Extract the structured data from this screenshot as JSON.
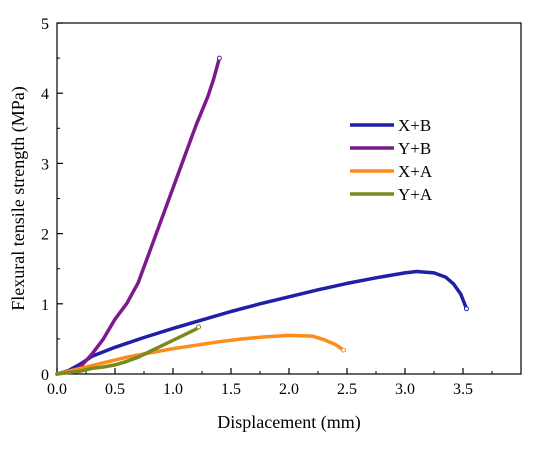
{
  "chart_data": {
    "type": "line",
    "title": "",
    "xlabel": "Displacement (mm)",
    "ylabel": "Flexural tensile strength (MPa)",
    "xlim": [
      0,
      4.0
    ],
    "ylim": [
      0,
      5
    ],
    "xticks": [
      "0.0",
      "0.5",
      "1.0",
      "1.5",
      "2.0",
      "2.5",
      "3.0",
      "3.5"
    ],
    "yticks": [
      "0",
      "1",
      "2",
      "3",
      "4",
      "5"
    ],
    "grid": false,
    "legend_position": "right",
    "series": [
      {
        "name": "X+B",
        "color": "#1f1fa8",
        "x": [
          0,
          0.1,
          0.2,
          0.3,
          0.5,
          0.75,
          1.0,
          1.25,
          1.5,
          1.75,
          2.0,
          2.25,
          2.5,
          2.75,
          3.0,
          3.1,
          3.25,
          3.35,
          3.42,
          3.48,
          3.53
        ],
        "y": [
          0,
          0.05,
          0.14,
          0.25,
          0.38,
          0.52,
          0.65,
          0.77,
          0.89,
          1.0,
          1.1,
          1.2,
          1.29,
          1.37,
          1.44,
          1.46,
          1.44,
          1.38,
          1.28,
          1.14,
          0.93
        ]
      },
      {
        "name": "Y+B",
        "color": "#7b1a8c",
        "x": [
          0,
          0.1,
          0.2,
          0.3,
          0.4,
          0.5,
          0.6,
          0.7,
          0.8,
          0.9,
          1.0,
          1.1,
          1.2,
          1.3,
          1.35,
          1.4
        ],
        "y": [
          0,
          0.03,
          0.1,
          0.28,
          0.5,
          0.78,
          1.0,
          1.3,
          1.75,
          2.2,
          2.65,
          3.1,
          3.55,
          3.95,
          4.2,
          4.5
        ]
      },
      {
        "name": "X+A",
        "color": "#ff8c1a",
        "x": [
          0,
          0.2,
          0.4,
          0.6,
          0.8,
          1.0,
          1.2,
          1.4,
          1.6,
          1.8,
          2.0,
          2.2,
          2.3,
          2.4,
          2.47
        ],
        "y": [
          0,
          0.08,
          0.16,
          0.24,
          0.3,
          0.36,
          0.41,
          0.46,
          0.5,
          0.53,
          0.55,
          0.54,
          0.49,
          0.42,
          0.34
        ]
      },
      {
        "name": "Y+A",
        "color": "#7a8a1e",
        "x": [
          0,
          0.2,
          0.3,
          0.4,
          0.5,
          0.6,
          0.7,
          0.8,
          0.9,
          1.0,
          1.1,
          1.2,
          1.22
        ],
        "y": [
          0,
          0.04,
          0.08,
          0.1,
          0.13,
          0.18,
          0.24,
          0.32,
          0.4,
          0.48,
          0.56,
          0.64,
          0.67
        ]
      }
    ]
  }
}
